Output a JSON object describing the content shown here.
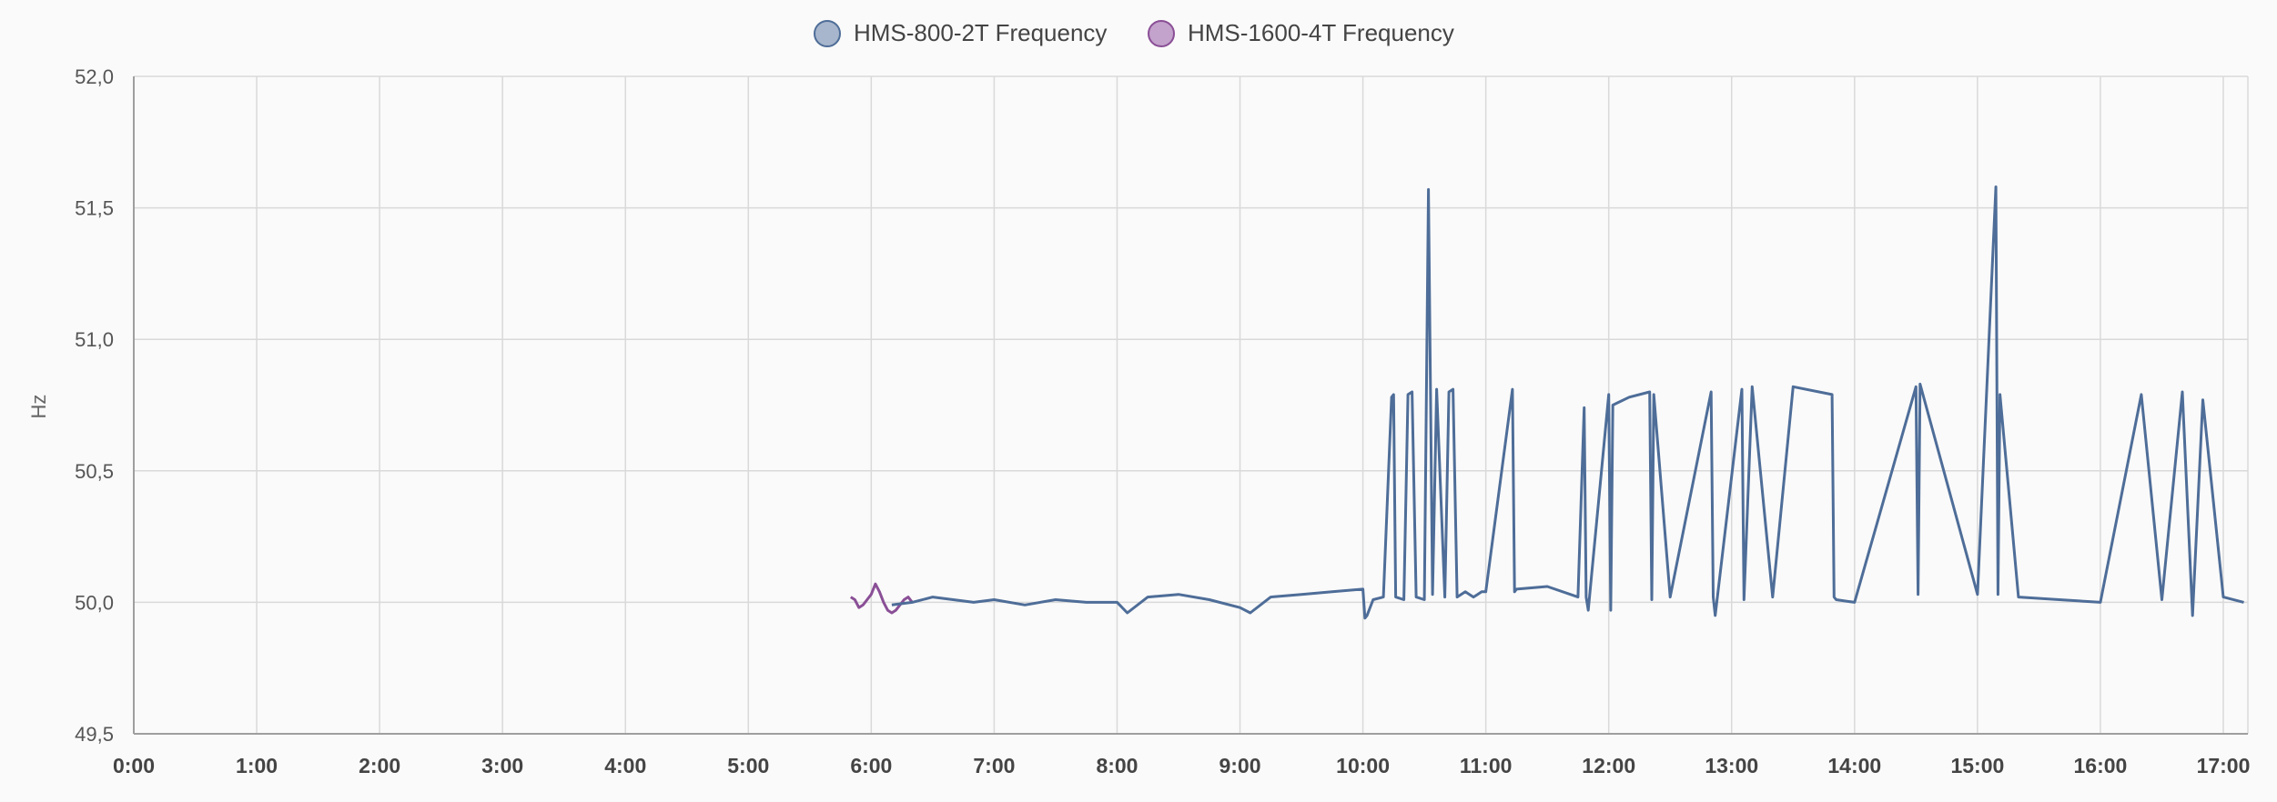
{
  "chart_data": {
    "type": "line",
    "title": "",
    "xlabel": "",
    "ylabel": "Hz",
    "legend_position": "top-center",
    "grid": true,
    "x_ticks": [
      "0:00",
      "1:00",
      "2:00",
      "3:00",
      "4:00",
      "5:00",
      "6:00",
      "7:00",
      "8:00",
      "9:00",
      "10:00",
      "11:00",
      "12:00",
      "13:00",
      "14:00",
      "15:00",
      "16:00",
      "17:00"
    ],
    "xlim": [
      "0:00",
      "17:12"
    ],
    "y_ticks": [
      "49,5",
      "50,0",
      "50,5",
      "51,0",
      "51,5",
      "52,0"
    ],
    "ylim": [
      49.5,
      52.0
    ],
    "series": [
      {
        "name": "HMS-800-2T Frequency",
        "color": "#4e6d98",
        "fill": "#a7b6cc",
        "x": [
          "6:10",
          "6:20",
          "6:30",
          "6:40",
          "6:50",
          "7:00",
          "7:15",
          "7:30",
          "7:45",
          "8:00",
          "8:05",
          "8:15",
          "8:30",
          "8:45",
          "9:00",
          "9:05",
          "9:15",
          "9:30",
          "9:45",
          "10:00",
          "10:01",
          "10:02",
          "10:05",
          "10:10",
          "10:14",
          "10:15",
          "10:16",
          "10:20",
          "10:22",
          "10:24",
          "10:26",
          "10:30",
          "10:32",
          "10:34",
          "10:36",
          "10:40",
          "10:42",
          "10:44",
          "10:46",
          "10:50",
          "10:52",
          "10:54",
          "10:56",
          "10:58",
          "11:00",
          "11:13",
          "11:14",
          "11:15",
          "11:30",
          "11:45",
          "11:48",
          "11:49",
          "11:50",
          "12:00",
          "12:01",
          "12:02",
          "12:10",
          "12:20",
          "12:21",
          "12:22",
          "12:30",
          "12:50",
          "12:51",
          "12:52",
          "13:05",
          "13:06",
          "13:10",
          "13:20",
          "13:30",
          "13:49",
          "13:50",
          "13:51",
          "14:00",
          "14:30",
          "14:31",
          "14:32",
          "15:00",
          "15:09",
          "15:10",
          "15:11",
          "15:20",
          "15:40",
          "16:00",
          "16:20",
          "16:30",
          "16:40",
          "16:45",
          "16:50",
          "17:00",
          "17:10"
        ],
        "y": [
          49.99,
          50.0,
          50.02,
          50.01,
          50.0,
          50.01,
          49.99,
          50.01,
          50.0,
          50.0,
          49.96,
          50.02,
          50.03,
          50.01,
          49.98,
          49.96,
          50.02,
          50.03,
          50.04,
          50.05,
          49.94,
          49.95,
          50.01,
          50.02,
          50.78,
          50.79,
          50.02,
          50.01,
          50.79,
          50.8,
          50.02,
          50.01,
          51.57,
          50.03,
          50.81,
          50.02,
          50.8,
          50.81,
          50.02,
          50.04,
          50.03,
          50.02,
          50.03,
          50.04,
          50.04,
          50.81,
          50.04,
          50.05,
          50.06,
          50.02,
          50.74,
          50.02,
          49.97,
          50.79,
          49.97,
          50.75,
          50.78,
          50.8,
          50.01,
          50.79,
          50.02,
          50.8,
          50.02,
          49.95,
          50.81,
          50.01,
          50.82,
          50.02,
          50.82,
          50.79,
          50.02,
          50.01,
          50.0,
          50.82,
          50.03,
          50.83,
          50.03,
          51.58,
          50.03,
          50.79,
          50.02,
          50.01,
          50.0,
          50.79,
          50.01,
          50.8,
          49.95,
          50.77,
          50.02,
          50.0
        ]
      },
      {
        "name": "HMS-1600-4T Frequency",
        "color": "#8a4f96",
        "fill": "#c3a2cc",
        "x": [
          "5:50",
          "5:52",
          "5:54",
          "5:56",
          "5:58",
          "6:00",
          "6:02",
          "6:04",
          "6:06",
          "6:08",
          "6:10",
          "6:12",
          "6:14",
          "6:16",
          "6:18",
          "6:20"
        ],
        "y": [
          50.02,
          50.01,
          49.98,
          49.99,
          50.01,
          50.03,
          50.07,
          50.04,
          50.0,
          49.97,
          49.96,
          49.97,
          49.99,
          50.01,
          50.02,
          50.0
        ]
      }
    ]
  }
}
